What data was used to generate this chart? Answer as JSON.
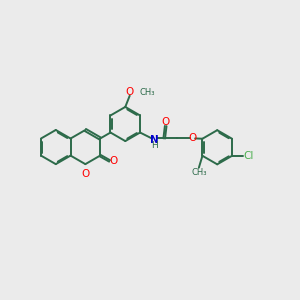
{
  "bg_color": "#ebebeb",
  "bond_color": "#2d6b4a",
  "o_color": "#ff0000",
  "n_color": "#0000cc",
  "cl_color": "#4caf50",
  "line_width": 1.4,
  "dbo": 0.04,
  "xlim": [
    0,
    10
  ],
  "ylim": [
    0,
    10
  ],
  "ring_r": 0.58
}
